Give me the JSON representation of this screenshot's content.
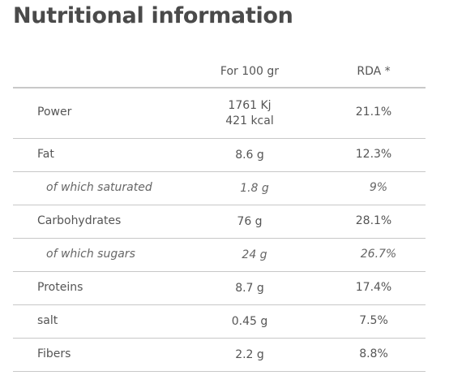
{
  "header": {
    "title": "Nutritional information"
  },
  "table": {
    "columns": [
      "For 100 gr",
      "RDA *"
    ],
    "rows": [
      {
        "label": "Power",
        "per100": [
          "1761 Kj",
          "421 kcal"
        ],
        "rda": "21.1%"
      },
      {
        "label": "Fat",
        "per100": [
          "8.6 g"
        ],
        "rda": "12.3%"
      },
      {
        "label": "of which saturated",
        "per100": [
          "1.8 g"
        ],
        "rda": "9%",
        "style": "italic"
      },
      {
        "label": "Carbohydrates",
        "per100": [
          "76 g"
        ],
        "rda": "28.1%"
      },
      {
        "label": "of which sugars",
        "per100": [
          "24 g"
        ],
        "rda": "26.7%",
        "style": "italic"
      },
      {
        "label": "Proteins",
        "per100": [
          "8.7 g"
        ],
        "rda": "17.4%"
      },
      {
        "label": "salt",
        "per100": [
          "0.45 g"
        ],
        "rda": "7.5%"
      },
      {
        "label": "Fibers",
        "per100": [
          "2.2 g"
        ],
        "rda": "8.8%"
      }
    ]
  }
}
